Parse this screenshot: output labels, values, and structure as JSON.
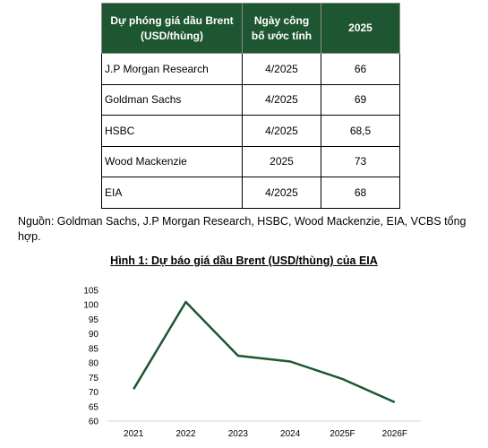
{
  "table": {
    "headers": [
      "Dự phóng giá dầu Brent (USD/thùng)",
      "Ngày công bố ước tính",
      "2025"
    ],
    "rows": [
      {
        "org": "J.P Morgan Research",
        "date": "4/2025",
        "value": "66"
      },
      {
        "org": "Goldman Sachs",
        "date": "4/2025",
        "value": "69"
      },
      {
        "org": "HSBC",
        "date": "4/2025",
        "value": "68,5"
      },
      {
        "org": "Wood Mackenzie",
        "date": "2025",
        "value": "73"
      },
      {
        "org": "EIA",
        "date": "4/2025",
        "value": "68"
      }
    ]
  },
  "source_note": "Nguồn: Goldman Sachs, J.P Morgan Research, HSBC, Wood Mackenzie, EIA, VCBS tổng hợp.",
  "figure_title": "Hình 1: Dự báo giá dầu Brent (USD/thùng) của EIA",
  "chart_data": {
    "type": "line",
    "title": "Hình 1: Dự báo giá dầu Brent (USD/thùng) của EIA",
    "categories": [
      "2021",
      "2022",
      "2023",
      "2024",
      "2025F",
      "2026F"
    ],
    "series": [
      {
        "values": [
          71,
          101,
          82.5,
          80.5,
          74.5,
          66.5
        ],
        "color": "#1e5631"
      }
    ],
    "ylim": [
      60,
      105
    ],
    "yticks": [
      60,
      65,
      70,
      75,
      80,
      85,
      90,
      95,
      100,
      105
    ],
    "grid": false,
    "legend": "none"
  }
}
